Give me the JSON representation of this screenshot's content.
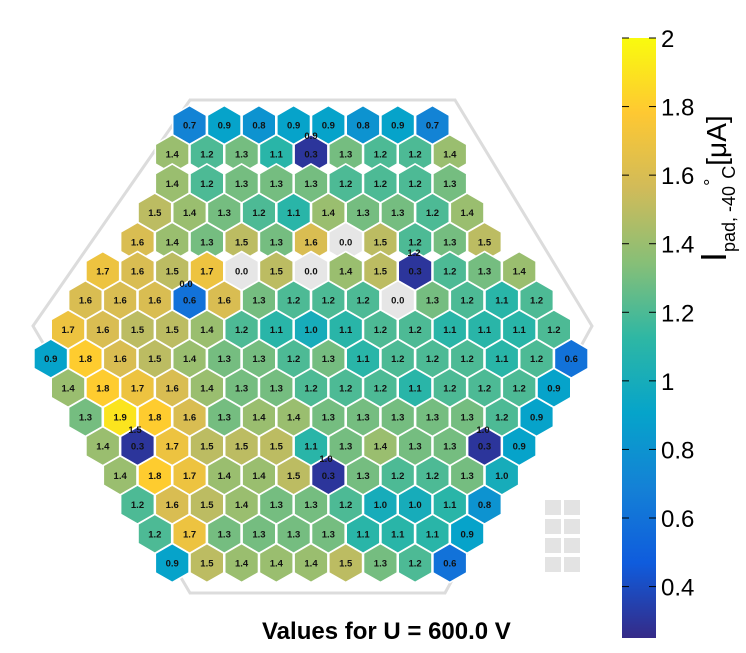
{
  "footer_text": "Values for U = 600.0 V",
  "chart_data": {
    "type": "heatmap",
    "title": "",
    "colorbar": {
      "label_main": "I",
      "label_sub": "pad, -40",
      "label_deg": "°",
      "label_c": "C",
      "label_unit": "[μA]",
      "min": 0.25,
      "max": 2.0,
      "ticks": [
        "2",
        "1.8",
        "1.6",
        "1.4",
        "1.2",
        "1",
        "0.8",
        "0.6",
        "0.4"
      ],
      "tick_values": [
        2,
        1.8,
        1.6,
        1.4,
        1.2,
        1,
        0.8,
        0.6,
        0.4
      ],
      "colors": [
        "#352a87",
        "#0f5cdd",
        "#1481d6",
        "#06a4ca",
        "#2eb7a4",
        "#87bf77",
        "#d1bb59",
        "#fec832",
        "#f9fb0e"
      ]
    },
    "inactive_color": "#e6e6e6",
    "rows": [
      [
        "0.7",
        "0.9",
        "0.8",
        "0.9",
        "0.9",
        "0.8",
        "0.9",
        "0.7"
      ],
      [
        "1.4",
        "1.2",
        "1.3",
        "1.1",
        "0.3",
        "1.3",
        "1.2",
        "1.2",
        "1.4"
      ],
      [
        "1.4",
        "1.2",
        "1.3",
        "1.3",
        "1.3",
        "1.2",
        "1.2",
        "1.2",
        "1.3"
      ],
      [
        "1.5",
        "1.4",
        "1.3",
        "1.2",
        "1.1",
        "1.4",
        "1.3",
        "1.3",
        "1.2",
        "1.4"
      ],
      [
        "1.6",
        "1.4",
        "1.3",
        "1.5",
        "1.3",
        "1.6",
        "0.0",
        "1.5",
        "1.2",
        "1.3",
        "1.5"
      ],
      [
        "1.7",
        "1.6",
        "1.5",
        "1.7",
        "0.0",
        "1.5",
        "0.0",
        "1.4",
        "1.5",
        "0.3",
        "1.2",
        "1.3",
        "1.4"
      ],
      [
        "1.6",
        "1.6",
        "1.6",
        "0.6",
        "1.6",
        "1.3",
        "1.2",
        "1.2",
        "1.2",
        "0.0",
        "1.3",
        "1.2",
        "1.1",
        "1.2"
      ],
      [
        "1.7",
        "1.6",
        "1.5",
        "1.5",
        "1.4",
        "1.2",
        "1.1",
        "1.0",
        "1.1",
        "1.2",
        "1.2",
        "1.1",
        "1.1",
        "1.1",
        "1.2"
      ],
      [
        "0.9",
        "1.8",
        "1.6",
        "1.5",
        "1.4",
        "1.3",
        "1.3",
        "1.2",
        "1.3",
        "1.1",
        "1.2",
        "1.2",
        "1.2",
        "1.1",
        "1.2",
        "0.6"
      ],
      [
        "1.4",
        "1.8",
        "1.7",
        "1.6",
        "1.4",
        "1.3",
        "1.3",
        "1.2",
        "1.2",
        "1.2",
        "1.1",
        "1.2",
        "1.2",
        "1.2",
        "0.9"
      ],
      [
        "1.3",
        "1.9",
        "1.8",
        "1.6",
        "1.3",
        "1.4",
        "1.4",
        "1.3",
        "1.3",
        "1.3",
        "1.3",
        "1.3",
        "1.2",
        "0.9"
      ],
      [
        "1.4",
        "0.3",
        "1.7",
        "1.5",
        "1.5",
        "1.5",
        "1.1",
        "1.3",
        "1.4",
        "1.3",
        "1.3",
        "0.3",
        "0.9"
      ],
      [
        "1.4",
        "1.8",
        "1.7",
        "1.4",
        "1.4",
        "1.5",
        "0.3",
        "1.3",
        "1.2",
        "1.2",
        "1.3",
        "1.0"
      ],
      [
        "1.2",
        "1.6",
        "1.5",
        "1.4",
        "1.3",
        "1.3",
        "1.2",
        "1.0",
        "1.0",
        "1.1",
        "0.8"
      ],
      [
        "1.2",
        "1.7",
        "1.3",
        "1.3",
        "1.3",
        "1.3",
        "1.1",
        "1.1",
        "1.1",
        "0.9"
      ],
      [
        "0.9",
        "1.5",
        "1.4",
        "1.4",
        "1.4",
        "1.5",
        "1.3",
        "1.2",
        "0.6"
      ]
    ],
    "extra_labels": [
      "0.9",
      "1.2",
      "0.0",
      "1.5",
      "1.0",
      "1.0"
    ]
  }
}
